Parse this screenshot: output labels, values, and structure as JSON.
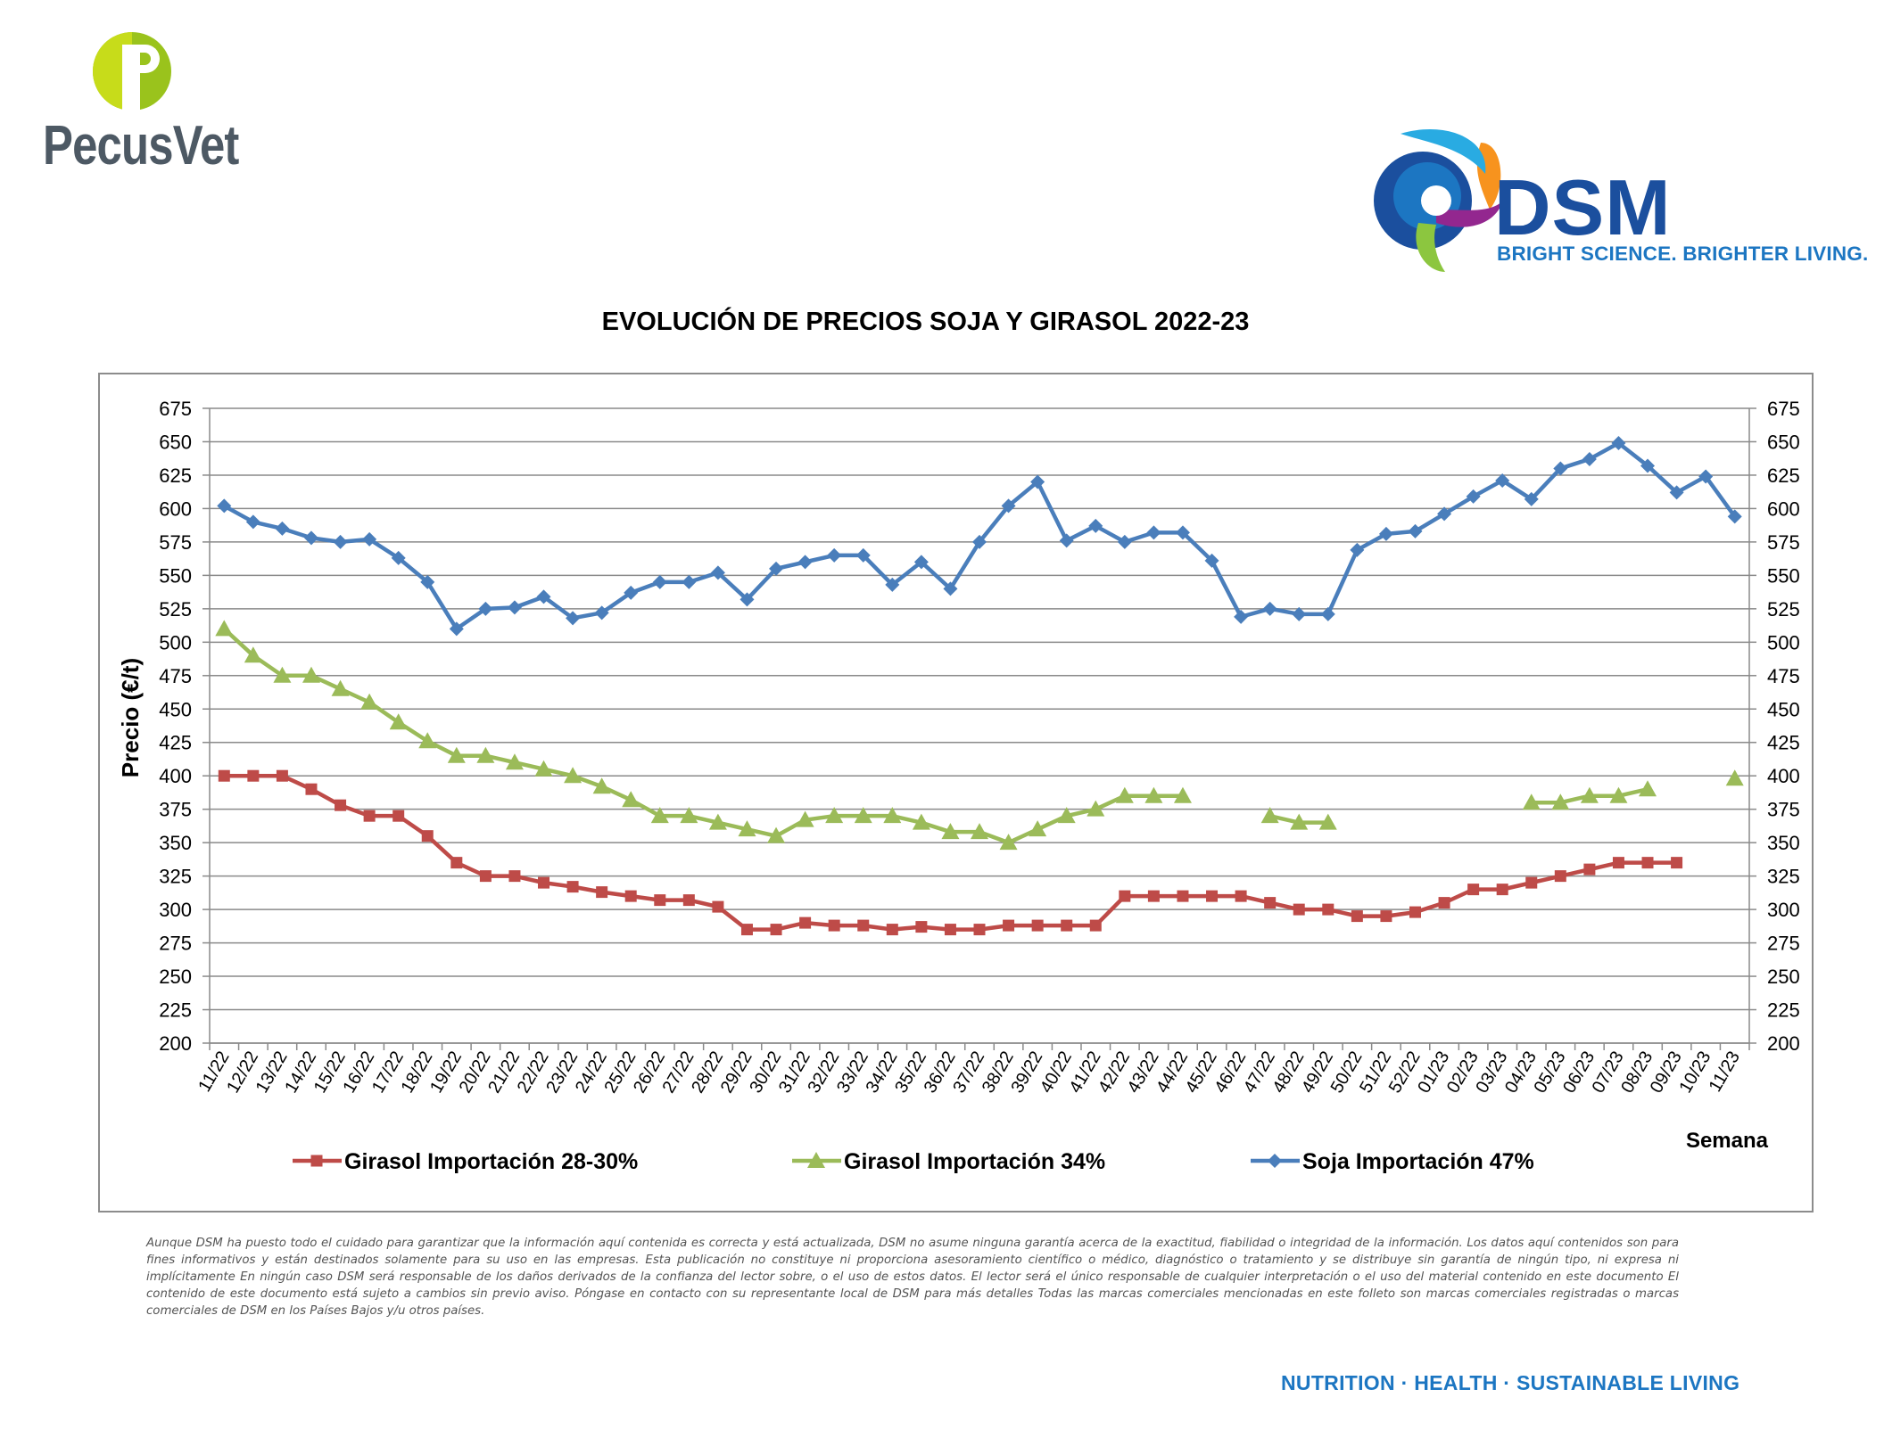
{
  "brand": {
    "pecusvet_name": "PecusVet",
    "dsm_name": "DSM",
    "dsm_tagline": "BRIGHT SCIENCE. BRIGHTER LIVING.",
    "colors": {
      "pecus_green": "#9ac31c",
      "pecus_text": "#4d5964",
      "dsm_blue": "#1b4f9e",
      "dsm_light_blue": "#1c76c2"
    }
  },
  "footer": {
    "disclaimer": "Aunque DSM ha puesto todo el cuidado para garantizar que la información aquí contenida es correcta y está actualizada, DSM no asume ninguna garantía acerca de la exactitud, fiabilidad o integridad de la información. Los datos aquí contenidos son para fines informativos y están destinados solamente para su uso en las empresas. Esta publicación no constituye ni proporciona asesoramiento científico o médico, diagnóstico o tratamiento y se distribuye sin garantía de ningún tipo, ni expresa ni implícitamente En ningún caso DSM será responsable de los daños derivados de la confianza del lector sobre, o el uso de estos datos. El lector será el único responsable de cualquier interpretación o el uso del material contenido en este documento El contenido de este documento está sujeto a cambios sin previo aviso. Póngase en contacto con su representante local de DSM para más detalles Todas las marcas comerciales mencionadas en este folleto son marcas comerciales registradas o marcas comerciales de DSM en los Países Bajos y/u otros países.",
    "tagline": "NUTRITION · HEALTH · SUSTAINABLE LIVING"
  },
  "chart_data": {
    "type": "line",
    "title": "EVOLUCIÓN DE PRECIOS SOJA Y GIRASOL 2022-23",
    "ylabel": "Precio (€/t)",
    "xlabel": "Semana",
    "ylim": [
      200,
      675
    ],
    "ytick_step": 25,
    "grid": true,
    "legend_position": "bottom",
    "categories": [
      "11/22",
      "12/22",
      "13/22",
      "14/22",
      "15/22",
      "16/22",
      "17/22",
      "18/22",
      "19/22",
      "20/22",
      "21/22",
      "22/22",
      "23/22",
      "24/22",
      "25/22",
      "26/22",
      "27/22",
      "28/22",
      "29/22",
      "30/22",
      "31/22",
      "32/22",
      "33/22",
      "34/22",
      "35/22",
      "36/22",
      "37/22",
      "38/22",
      "39/22",
      "40/22",
      "41/22",
      "42/22",
      "43/22",
      "44/22",
      "45/22",
      "46/22",
      "47/22",
      "48/22",
      "49/22",
      "50/22",
      "51/22",
      "52/22",
      "01/23",
      "02/23",
      "03/23",
      "04/23",
      "05/23",
      "06/23",
      "07/23",
      "08/23",
      "09/23",
      "10/23",
      "11/23"
    ],
    "series": [
      {
        "name": "Girasol Importación 28-30%",
        "color": "#be4b48",
        "marker": "square",
        "values": [
          400,
          400,
          400,
          390,
          378,
          370,
          370,
          355,
          335,
          325,
          325,
          320,
          317,
          313,
          310,
          307,
          307,
          302,
          285,
          285,
          290,
          288,
          288,
          285,
          287,
          285,
          285,
          288,
          288,
          288,
          288,
          310,
          310,
          310,
          310,
          310,
          305,
          300,
          300,
          295,
          295,
          298,
          305,
          315,
          315,
          320,
          325,
          330,
          335,
          335,
          335,
          null,
          null
        ]
      },
      {
        "name": "Girasol Importación 34%",
        "color": "#9bbb59",
        "marker": "triangle",
        "values": [
          510,
          490,
          475,
          475,
          465,
          455,
          440,
          426,
          415,
          415,
          410,
          405,
          400,
          392,
          382,
          370,
          370,
          365,
          360,
          355,
          367,
          370,
          370,
          370,
          365,
          358,
          358,
          350,
          360,
          370,
          375,
          385,
          385,
          385,
          null,
          null,
          370,
          365,
          365,
          null,
          null,
          null,
          null,
          null,
          null,
          380,
          380,
          385,
          385,
          390,
          null,
          null,
          398
        ]
      },
      {
        "name": "Soja Importación 47%",
        "color": "#4a7ebb",
        "marker": "diamond",
        "values": [
          602,
          590,
          585,
          578,
          575,
          577,
          563,
          545,
          510,
          525,
          526,
          534,
          518,
          522,
          537,
          545,
          545,
          552,
          532,
          555,
          560,
          565,
          565,
          543,
          560,
          540,
          575,
          602,
          620,
          576,
          587,
          575,
          582,
          582,
          561,
          519,
          525,
          521,
          521,
          569,
          581,
          583,
          596,
          609,
          621,
          607,
          630,
          637,
          649,
          632,
          612,
          624,
          594
        ]
      }
    ]
  }
}
